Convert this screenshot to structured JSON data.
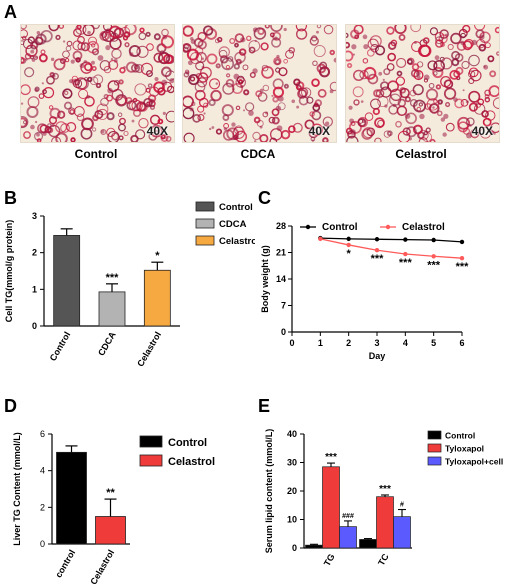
{
  "panel_a": {
    "letter": "A",
    "images": [
      {
        "caption": "Control",
        "magnification": "40X"
      },
      {
        "caption": "CDCA",
        "magnification": "40X"
      },
      {
        "caption": "Celastrol",
        "magnification": "40X"
      }
    ]
  },
  "chart_data": [
    {
      "panel": "B",
      "type": "bar",
      "ylabel": "Cell TG(mmol/g protein)",
      "ylim": [
        0,
        3
      ],
      "yticks": [
        "0",
        "1",
        "2",
        "3"
      ],
      "categories": [
        "Control",
        "CDCA",
        "Celastrol"
      ],
      "values": [
        2.47,
        0.93,
        1.52
      ],
      "errors": [
        0.18,
        0.22,
        0.22
      ],
      "significance": [
        "",
        "***",
        "*"
      ],
      "colors": [
        "#555555",
        "#b3b3b3",
        "#f7a941"
      ],
      "legend": [
        "Control",
        "CDCA",
        "Celastrol"
      ],
      "legend_placement": "right"
    },
    {
      "panel": "C",
      "type": "line",
      "xlabel": "Day",
      "ylabel": "Body weight (g)",
      "xlim": [
        0,
        6
      ],
      "ylim": [
        0,
        28
      ],
      "xticks": [
        "0",
        "1",
        "2",
        "3",
        "4",
        "5",
        "6"
      ],
      "yticks": [
        "0",
        "7",
        "14",
        "21",
        "28"
      ],
      "x": [
        1,
        2,
        3,
        4,
        5,
        6
      ],
      "series": [
        {
          "name": "Control",
          "values": [
            24.8,
            24.6,
            24.5,
            24.4,
            24.3,
            23.8
          ],
          "color": "#000000"
        },
        {
          "name": "Celastrol",
          "values": [
            24.6,
            23.0,
            21.6,
            20.6,
            20.0,
            19.5
          ],
          "color": "#ff5a5a"
        }
      ],
      "significance": [
        "",
        "*",
        "***",
        "***",
        "***",
        "***"
      ],
      "legend_placement": "top"
    },
    {
      "panel": "D",
      "type": "bar",
      "ylabel": "Liver TG Content (mmol/L)",
      "ylim": [
        0,
        6
      ],
      "yticks": [
        "0",
        "2",
        "4",
        "6"
      ],
      "categories": [
        "control",
        "Celastrol"
      ],
      "values": [
        5.0,
        1.5
      ],
      "errors": [
        0.35,
        0.95
      ],
      "significance": [
        "",
        "**"
      ],
      "colors": [
        "#000000",
        "#f03b3b"
      ],
      "legend": [
        "Control",
        "Celastrol"
      ],
      "legend_placement": "right"
    },
    {
      "panel": "E",
      "type": "bar",
      "ylabel": "Serum lipid content (mmol/L)",
      "ylim": [
        0,
        40
      ],
      "yticks": [
        "0",
        "10",
        "20",
        "30",
        "40"
      ],
      "categories": [
        "TG",
        "TC"
      ],
      "series": [
        {
          "name": "Control",
          "values": [
            1.0,
            3.0
          ],
          "errors": [
            0.3,
            0.3
          ],
          "color": "#000000",
          "significance": [
            "",
            ""
          ]
        },
        {
          "name": "Tyloxapol",
          "values": [
            28.5,
            18.0
          ],
          "errors": [
            1.3,
            0.6
          ],
          "color": "#f03b3b",
          "significance": [
            "***",
            "***"
          ]
        },
        {
          "name": "Tyloxapol+cell",
          "values": [
            7.5,
            11.0
          ],
          "errors": [
            2.0,
            2.5
          ],
          "color": "#5a5aff",
          "significance": [
            "###",
            "#"
          ]
        }
      ],
      "legend_placement": "top-right"
    }
  ]
}
